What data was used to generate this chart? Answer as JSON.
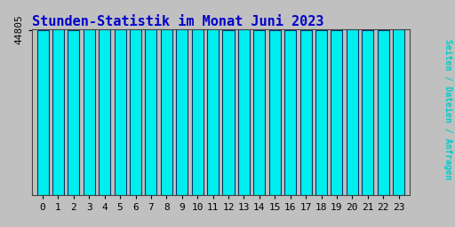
{
  "title": "Stunden-Statistik im Monat Juni 2023",
  "title_color": "#0000cc",
  "ylabel": "Seiten / Dateien / Anfragen",
  "ylabel_color": "#00cccc",
  "ytick_label": "44805",
  "background_color": "#c0c0c0",
  "plot_bg_color": "#c0c0c0",
  "bar_color": "#00eeee",
  "bar_edge_color": "#003366",
  "bar_width": 0.75,
  "hours": [
    0,
    1,
    2,
    3,
    4,
    5,
    6,
    7,
    8,
    9,
    10,
    11,
    12,
    13,
    14,
    15,
    16,
    17,
    18,
    19,
    20,
    21,
    22,
    23
  ],
  "values": [
    44820,
    44870,
    44810,
    44840,
    44845,
    44845,
    44848,
    44865,
    44835,
    44855,
    44848,
    44848,
    44828,
    44833,
    44830,
    44825,
    44812,
    44812,
    44813,
    44817,
    44843,
    44822,
    44820,
    44838
  ],
  "ymin": 0,
  "ymax": 44885,
  "ytick_pos": 44805,
  "title_fontsize": 11,
  "tick_fontsize": 8,
  "ylabel_fontsize": 7
}
